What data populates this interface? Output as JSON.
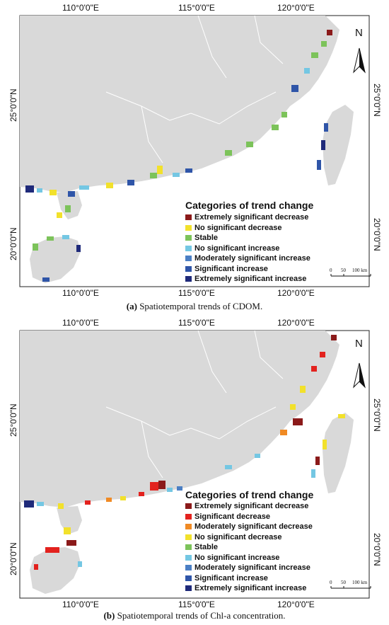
{
  "panels": [
    {
      "id": "a",
      "lon_top": [
        "110°0'0\"E",
        "115°0'0\"E",
        "120°0'0\"E"
      ],
      "lon_bottom": [
        "110°0'0\"E",
        "115°0'0\"E",
        "120°0'0\"E"
      ],
      "lat_left": [
        "25°0'0\"N",
        "20°0'0\"N"
      ],
      "lat_right": [
        "25°0'0\"N",
        "20°0'0\"N"
      ],
      "north_label": "N",
      "legend_title": "Categories of trend change",
      "legend": [
        {
          "label": "Extremely significant decrease",
          "color": "#8b1a1a"
        },
        {
          "label": "No significant decrease",
          "color": "#f2e12b"
        },
        {
          "label": "Stable",
          "color": "#7cc35a"
        },
        {
          "label": "No significant increase",
          "color": "#74c7e3"
        },
        {
          "label": "Moderately significant increase",
          "color": "#4b7fc4"
        },
        {
          "label": "Significant increase",
          "color": "#2f55a8"
        },
        {
          "label": "Extremely significant increase",
          "color": "#1f2a7a"
        }
      ],
      "scale_labels": [
        "0",
        "50",
        "100 km"
      ],
      "caption_prefix": "(a)",
      "caption_text": " Spatiotemporal trends of CDOM."
    },
    {
      "id": "b",
      "lon_top": [
        "110°0'0\"E",
        "115°0'0\"E",
        "120°0'0\"E"
      ],
      "lon_bottom": [
        "110°0'0\"E",
        "115°0'0\"E",
        "120°0'0\"E"
      ],
      "lat_left": [
        "25°0'0\"N",
        "20°0'0\"N"
      ],
      "lat_right": [
        "25°0'0\"N",
        "20°0'0\"N"
      ],
      "north_label": "N",
      "legend_title": "Categories of trend change",
      "legend": [
        {
          "label": "Extremely significant decrease",
          "color": "#8b1a1a"
        },
        {
          "label": "Significant decrease",
          "color": "#e3221e"
        },
        {
          "label": "Moderately significant decrease",
          "color": "#f08a24"
        },
        {
          "label": "No significant decrease",
          "color": "#f2e12b"
        },
        {
          "label": "Stable",
          "color": "#7cc35a"
        },
        {
          "label": "No significant increase",
          "color": "#74c7e3"
        },
        {
          "label": "Moderately significant increase",
          "color": "#4b7fc4"
        },
        {
          "label": "Significant increase",
          "color": "#2f55a8"
        },
        {
          "label": "Extremely significant increase",
          "color": "#1f2a7a"
        }
      ],
      "scale_labels": [
        "0",
        "50",
        "100 km"
      ],
      "caption_prefix": "(b)",
      "caption_text": " Spatiotemporal trends of Chl-a concentration."
    }
  ],
  "colors": {
    "land": "#d9d9d9",
    "sea": "#ffffff",
    "frame": "#222222",
    "border": "#ffffff"
  }
}
